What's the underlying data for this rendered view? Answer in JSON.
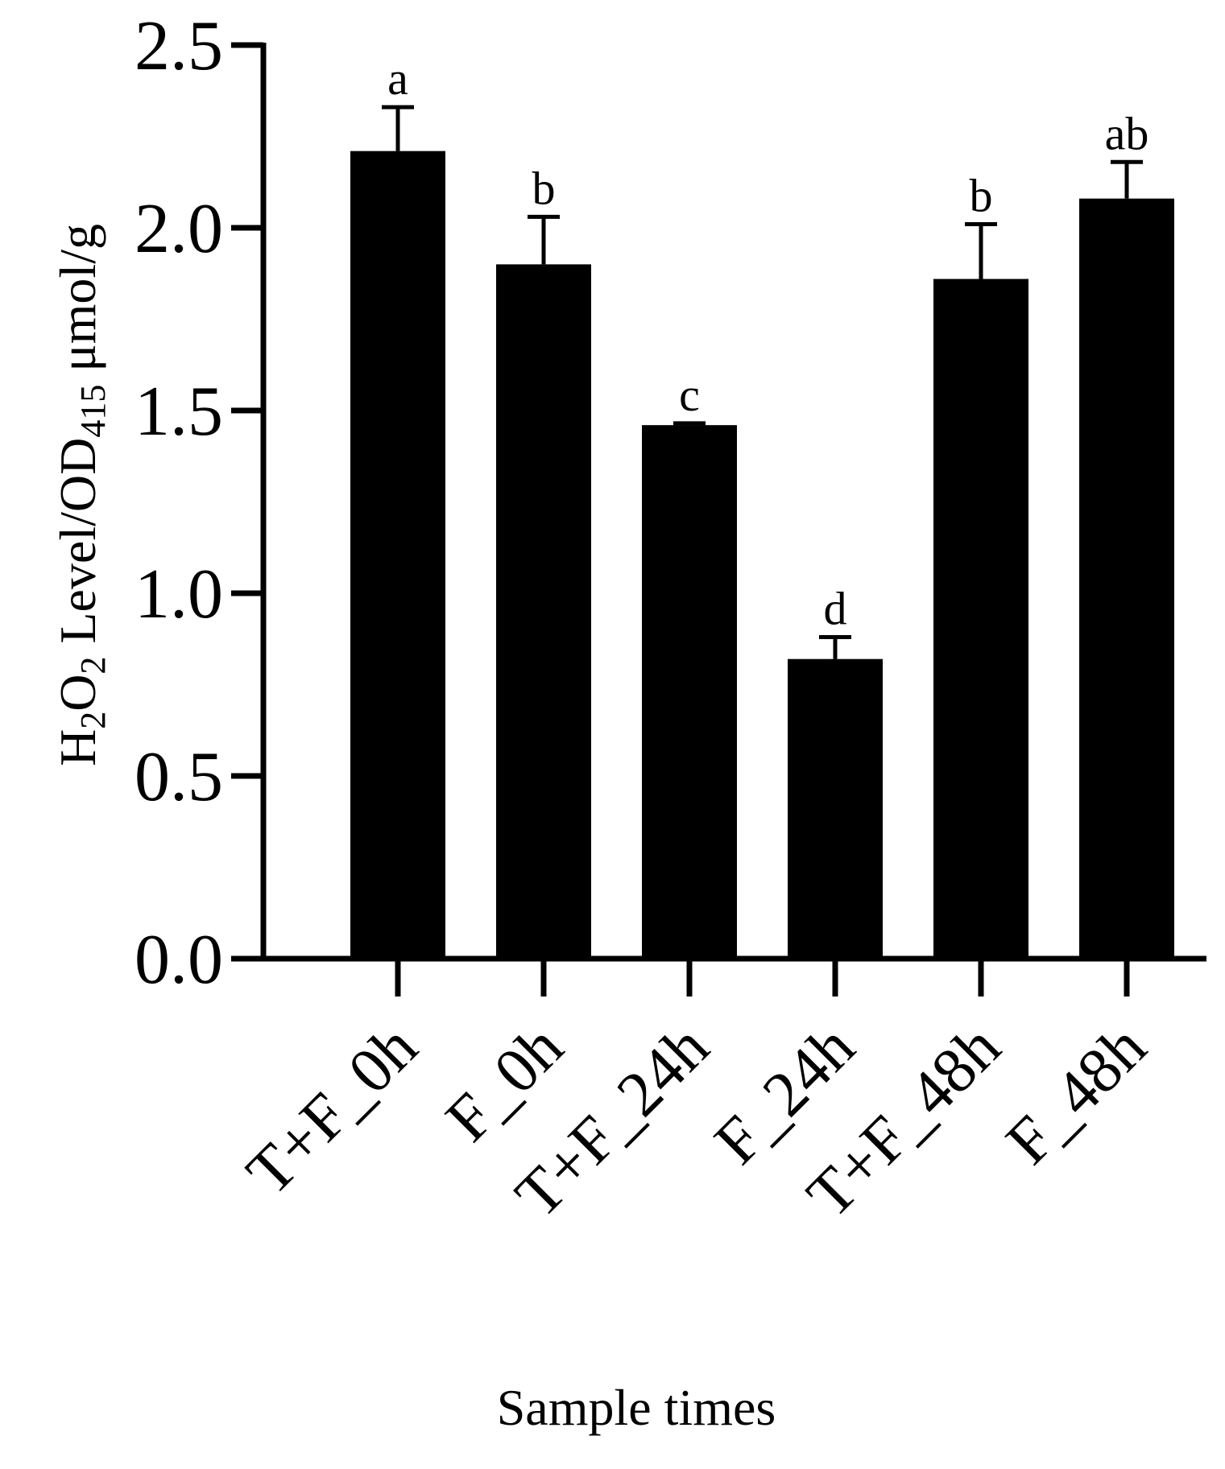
{
  "chart_data": {
    "type": "bar",
    "categories": [
      "T+F_0h",
      "F_0h",
      "T+F_24h",
      "F_24h",
      "T+F_48h",
      "F_48h"
    ],
    "values": [
      2.21,
      1.9,
      1.46,
      0.82,
      1.86,
      2.08
    ],
    "error_upper": [
      2.33,
      2.03,
      1.465,
      0.88,
      2.01,
      2.18
    ],
    "significance": [
      "a",
      "b",
      "c",
      "d",
      "b",
      "ab"
    ],
    "ylim": [
      0,
      2.5
    ],
    "yticks": [
      "0.0",
      "0.5",
      "1.0",
      "1.5",
      "2.0",
      "2.5"
    ],
    "ylabel": {
      "p1": "H",
      "s1": "2",
      "p2": "O",
      "s2": "2",
      "p3": " Level/OD",
      "s3": "415",
      "p4": " μmol/g"
    },
    "xlabel": "Sample times",
    "bar_color": "#000000",
    "grid": false
  }
}
